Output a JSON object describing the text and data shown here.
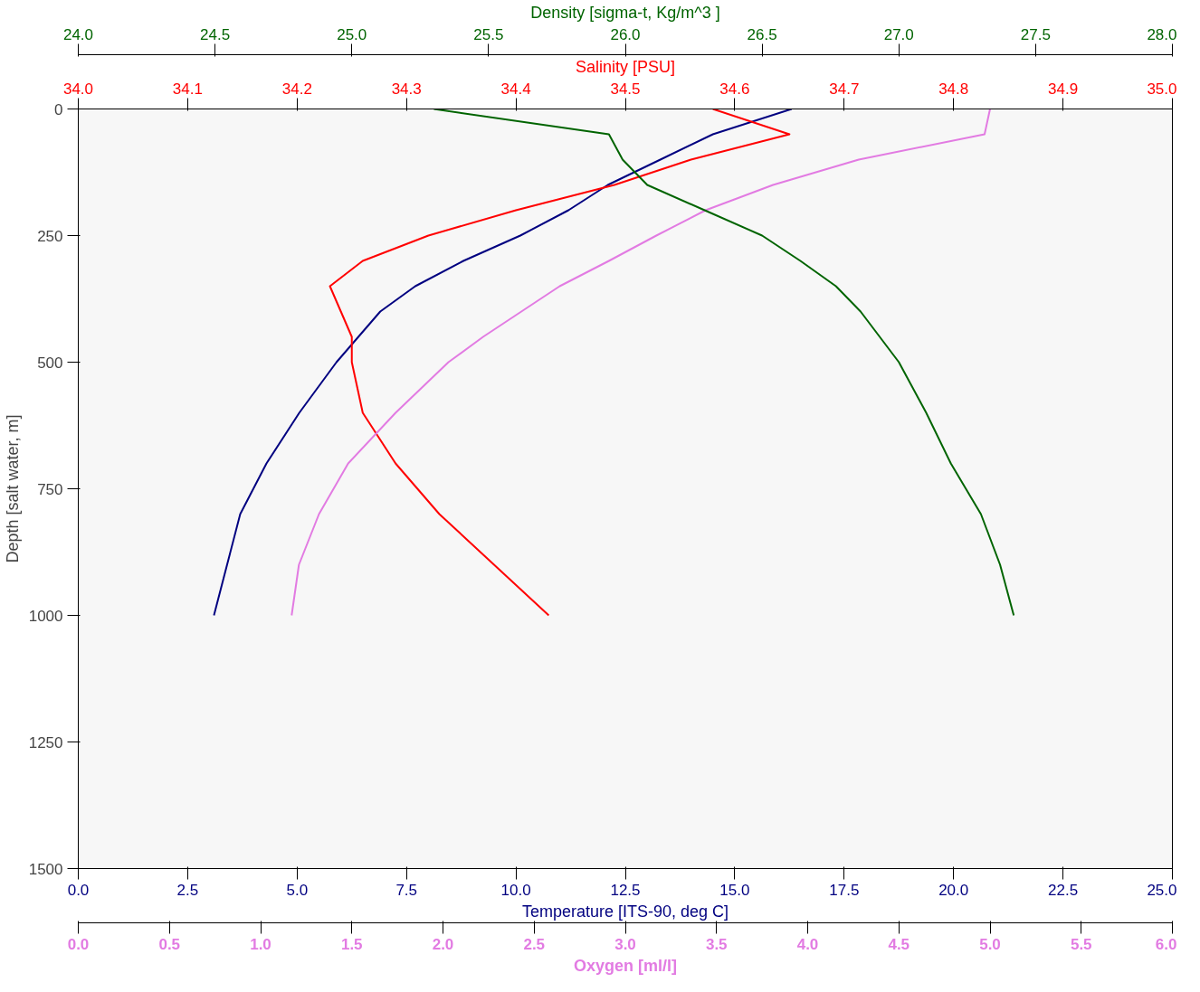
{
  "chart_data": [
    {
      "type": "line",
      "ylabel": "Depth [salt water, m]",
      "ylim": [
        1500,
        0
      ],
      "yticks": [
        0,
        250,
        500,
        750,
        1000,
        1250,
        1500
      ],
      "xlabel": "Temperature [ITS-90, deg C]",
      "xlim": [
        0,
        25
      ],
      "xticks": [
        {
          "value": 0,
          "label": "0.0"
        },
        {
          "value": 2.5,
          "label": "2.5"
        },
        {
          "value": 5,
          "label": "5.0"
        },
        {
          "value": 7.5,
          "label": "7.5"
        },
        {
          "value": 10,
          "label": "10.0"
        },
        {
          "value": 12.5,
          "label": "12.5"
        },
        {
          "value": 15,
          "label": "15.0"
        },
        {
          "value": 17.5,
          "label": "17.5"
        },
        {
          "value": 20,
          "label": "20.0"
        },
        {
          "value": 22.5,
          "label": "22.5"
        },
        {
          "value": 25,
          "label": "25.0"
        }
      ],
      "x2label": "Salinity [PSU]",
      "x2lim": [
        34.0,
        35.0
      ],
      "x2ticks": [
        {
          "value": 34.0,
          "label": "34.0"
        },
        {
          "value": 34.1,
          "label": "34.1"
        },
        {
          "value": 34.2,
          "label": "34.2"
        },
        {
          "value": 34.3,
          "label": "34.3"
        },
        {
          "value": 34.4,
          "label": "34.4"
        },
        {
          "value": 34.5,
          "label": "34.5"
        },
        {
          "value": 34.6,
          "label": "34.6"
        },
        {
          "value": 34.7,
          "label": "34.7"
        },
        {
          "value": 34.8,
          "label": "34.8"
        },
        {
          "value": 34.9,
          "label": "34.9"
        },
        {
          "value": 35.0,
          "label": "35.0"
        }
      ],
      "grid": false,
      "series": [
        {
          "color": "#000080",
          "x": [
            16.3,
            14.5,
            13.3,
            12.1,
            11.2,
            10.1,
            8.8,
            7.7,
            6.9,
            6.4,
            5.9,
            5.05,
            4.3,
            3.7,
            3.4,
            3.1
          ],
          "values": [
            0,
            50,
            100,
            150,
            200,
            250,
            300,
            350,
            400,
            450,
            500,
            600,
            700,
            800,
            900,
            1000
          ]
        },
        {
          "color": "#ff0000",
          "axis": "x2",
          "x": [
            34.58,
            34.65,
            34.56,
            34.49,
            34.4,
            34.32,
            34.26,
            34.23,
            34.24,
            34.25,
            34.25,
            34.26,
            34.29,
            34.33,
            34.38,
            34.43
          ],
          "values": [
            0,
            50,
            100,
            150,
            200,
            250,
            300,
            350,
            400,
            450,
            500,
            600,
            700,
            800,
            900,
            1000
          ]
        }
      ]
    },
    {
      "type": "line",
      "ylim": [
        1500,
        0
      ],
      "tick_labels": "x",
      "xlabel": "Oxygen [ml/l]",
      "xlim": [
        0,
        6
      ],
      "xticks": [
        {
          "value": 0,
          "label": "0.0"
        },
        {
          "value": 0.5,
          "label": "0.5"
        },
        {
          "value": 1,
          "label": "1.0"
        },
        {
          "value": 1.5,
          "label": "1.5"
        },
        {
          "value": 2,
          "label": "2.0"
        },
        {
          "value": 2.5,
          "label": "2.5"
        },
        {
          "value": 3,
          "label": "3.0"
        },
        {
          "value": 3.5,
          "label": "3.5"
        },
        {
          "value": 4,
          "label": "4.0"
        },
        {
          "value": 4.5,
          "label": "4.5"
        },
        {
          "value": 5,
          "label": "5.0"
        },
        {
          "value": 5.5,
          "label": "5.5"
        },
        {
          "value": 6,
          "label": "6.0"
        }
      ],
      "x2label": "Density [sigma-t, Kg/m^3 ]",
      "x2lim": [
        24.0,
        28.0
      ],
      "x2ticks": [
        {
          "value": 24.0,
          "label": "24.0"
        },
        {
          "value": 24.5,
          "label": "24.5"
        },
        {
          "value": 25.0,
          "label": "25.0"
        },
        {
          "value": 25.5,
          "label": "25.5"
        },
        {
          "value": 26.0,
          "label": "26.0"
        },
        {
          "value": 26.5,
          "label": "26.5"
        },
        {
          "value": 27.0,
          "label": "27.0"
        },
        {
          "value": 27.5,
          "label": "27.5"
        },
        {
          "value": 28.0,
          "label": "28.0"
        }
      ],
      "series": [
        {
          "color": "#e27be2",
          "x": [
            5.0,
            4.97,
            4.28,
            3.81,
            3.44,
            3.17,
            2.91,
            2.64,
            2.43,
            2.22,
            2.03,
            1.74,
            1.48,
            1.32,
            1.21,
            1.17
          ],
          "values": [
            0,
            50,
            100,
            150,
            200,
            250,
            300,
            350,
            400,
            450,
            500,
            600,
            700,
            800,
            900,
            1000
          ]
        },
        {
          "color": "#006400",
          "axis": "x2",
          "x": [
            25.3,
            25.94,
            25.99,
            26.08,
            26.29,
            26.5,
            26.64,
            26.77,
            26.86,
            26.93,
            27.0,
            27.1,
            27.19,
            27.3,
            27.37,
            27.42
          ],
          "values": [
            0,
            50,
            100,
            150,
            200,
            250,
            300,
            350,
            400,
            450,
            500,
            600,
            700,
            800,
            900,
            1000
          ]
        }
      ]
    }
  ]
}
